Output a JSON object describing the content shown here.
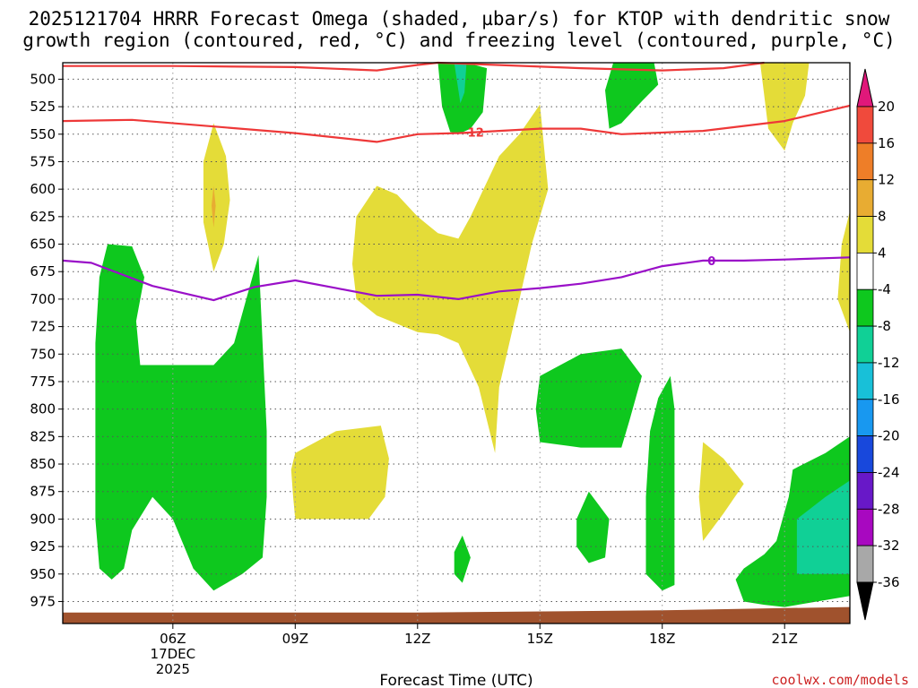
{
  "chart_data": {
    "type": "contour",
    "title_lines": [
      "2025121704 HRRR Forecast Omega (shaded, µbar/s) for KTOP with dendritic snow",
      "growth region (contoured, red, °C) and freezing level (contoured, purple, °C)"
    ],
    "xlabel": "Forecast Time (UTC)",
    "ylabel": "",
    "y_scale": "pressure (hPa, inverted)",
    "x_range_hours_utc": [
      3.3,
      22.6
    ],
    "y_range_hpa": [
      485,
      995
    ],
    "x_ticks": [
      {
        "hour": 6,
        "label": "06Z",
        "sublabels": [
          "17DEC",
          "2025"
        ]
      },
      {
        "hour": 9,
        "label": "09Z",
        "sublabels": []
      },
      {
        "hour": 12,
        "label": "12Z",
        "sublabels": []
      },
      {
        "hour": 15,
        "label": "15Z",
        "sublabels": []
      },
      {
        "hour": 18,
        "label": "18Z",
        "sublabels": []
      },
      {
        "hour": 21,
        "label": "21Z",
        "sublabels": []
      }
    ],
    "y_ticks": [
      500,
      525,
      550,
      575,
      600,
      625,
      650,
      675,
      700,
      725,
      750,
      775,
      800,
      825,
      850,
      875,
      900,
      925,
      950,
      975
    ],
    "grid": "dotted",
    "colorbar": {
      "units": "µbar/s",
      "labels": [
        "20",
        "16",
        "12",
        "8",
        "4",
        "-4",
        "-8",
        "-12",
        "-16",
        "-20",
        "-24",
        "-28",
        "-32",
        "-36"
      ],
      "bins": [
        {
          "range": ">20",
          "color": "#e0187a"
        },
        {
          "range": "16 to 20",
          "color": "#f04a3c"
        },
        {
          "range": "12 to 16",
          "color": "#ee7e28"
        },
        {
          "range": "8 to 12",
          "color": "#e8ac32"
        },
        {
          "range": "4 to 8",
          "color": "#e4dc38"
        },
        {
          "range": "-4 to 4",
          "color": "#ffffff"
        },
        {
          "range": "-8 to -4",
          "color": "#0ec81e"
        },
        {
          "range": "-12 to -8",
          "color": "#10d096"
        },
        {
          "range": "-16 to -12",
          "color": "#18c0d8"
        },
        {
          "range": "-20 to -16",
          "color": "#1898f0"
        },
        {
          "range": "-24 to -20",
          "color": "#1848dc"
        },
        {
          "range": "-28 to -24",
          "color": "#6818c8"
        },
        {
          "range": "-32 to -28",
          "color": "#a808c0"
        },
        {
          "range": "-36 to -32",
          "color": "#a8a8a8"
        },
        {
          "range": "<-36",
          "color": "#000000"
        }
      ]
    },
    "contours": {
      "dgz_minus12_upper": {
        "label": "",
        "color": "#ee3838",
        "points": [
          [
            3.3,
            488
          ],
          [
            6,
            488
          ],
          [
            9,
            489
          ],
          [
            11,
            492
          ],
          [
            12,
            487
          ],
          [
            12.5,
            482
          ],
          [
            16,
            490
          ],
          [
            18,
            492
          ],
          [
            19.5,
            490
          ],
          [
            20.5,
            482
          ]
        ]
      },
      "dgz_minus12_lower": {
        "label": "-12",
        "label_at": [
          13,
          548
        ],
        "color": "#ee3838",
        "points": [
          [
            3.3,
            538
          ],
          [
            5,
            537
          ],
          [
            7,
            543
          ],
          [
            9,
            549
          ],
          [
            11,
            557
          ],
          [
            12,
            550
          ],
          [
            13,
            549
          ],
          [
            15,
            545
          ],
          [
            16,
            545
          ],
          [
            17,
            550
          ],
          [
            19,
            547
          ],
          [
            21,
            538
          ],
          [
            22.6,
            524
          ]
        ]
      },
      "freezing_level_0C": {
        "label": "0",
        "label_at": [
          19,
          665
        ],
        "color": "#9a10c8",
        "points": [
          [
            3.3,
            665
          ],
          [
            4,
            667
          ],
          [
            5.5,
            688
          ],
          [
            7,
            701
          ],
          [
            8,
            689
          ],
          [
            9,
            683
          ],
          [
            10,
            690
          ],
          [
            11,
            697
          ],
          [
            12,
            696
          ],
          [
            13,
            700
          ],
          [
            14,
            693
          ],
          [
            15,
            690
          ],
          [
            16,
            686
          ],
          [
            17,
            680
          ],
          [
            18,
            670
          ],
          [
            19,
            665
          ],
          [
            20,
            665
          ],
          [
            21,
            664
          ],
          [
            22.6,
            662
          ]
        ]
      }
    },
    "shaded_regions": [
      {
        "value_bin": "4 to 8",
        "points": [
          [
            10.4,
            668
          ],
          [
            10.5,
            625
          ],
          [
            11,
            597
          ],
          [
            11.5,
            605
          ],
          [
            12,
            625
          ],
          [
            12.5,
            640
          ],
          [
            13,
            645
          ],
          [
            13.3,
            625
          ],
          [
            14,
            570
          ],
          [
            14.5,
            550
          ],
          [
            15,
            523
          ],
          [
            15.2,
            600
          ],
          [
            14.8,
            650
          ],
          [
            14.5,
            700
          ],
          [
            14,
            780
          ],
          [
            13.9,
            840
          ],
          [
            13.5,
            780
          ],
          [
            13,
            740
          ],
          [
            12.5,
            732
          ],
          [
            12,
            730
          ],
          [
            11,
            715
          ],
          [
            10.5,
            700
          ]
        ]
      },
      {
        "value_bin": "4 to 8",
        "points": [
          [
            6.75,
            575
          ],
          [
            7,
            540
          ],
          [
            7.3,
            570
          ],
          [
            7.4,
            610
          ],
          [
            7.25,
            650
          ],
          [
            7,
            675
          ],
          [
            6.75,
            630
          ]
        ]
      },
      {
        "value_bin": "8 to 12",
        "points": [
          [
            6.95,
            615
          ],
          [
            7,
            597
          ],
          [
            7.05,
            615
          ],
          [
            7,
            635
          ]
        ]
      },
      {
        "value_bin": "4 to 8",
        "points": [
          [
            8.9,
            855
          ],
          [
            9,
            840
          ],
          [
            10,
            820
          ],
          [
            11.1,
            815
          ],
          [
            11.3,
            845
          ],
          [
            11.2,
            880
          ],
          [
            10.8,
            900
          ],
          [
            10,
            900
          ],
          [
            9,
            900
          ],
          [
            8.95,
            880
          ]
        ]
      },
      {
        "value_bin": "4 to 8",
        "points": [
          [
            19,
            830
          ],
          [
            19.5,
            845
          ],
          [
            20,
            868
          ],
          [
            19.5,
            895
          ],
          [
            19,
            920
          ],
          [
            18.9,
            880
          ]
        ]
      },
      {
        "value_bin": "4 to 8",
        "points": [
          [
            20.4,
            480
          ],
          [
            21.6,
            480
          ],
          [
            21.5,
            515
          ],
          [
            21.2,
            540
          ],
          [
            21,
            565
          ],
          [
            20.6,
            545
          ],
          [
            20.5,
            515
          ]
        ]
      },
      {
        "value_bin": "4 to 8",
        "points": [
          [
            22.4,
            650
          ],
          [
            22.6,
            620
          ],
          [
            22.6,
            730
          ],
          [
            22.3,
            700
          ]
        ]
      },
      {
        "value_bin": "-8 to -4",
        "points": [
          [
            4.1,
            740
          ],
          [
            4.2,
            680
          ],
          [
            4.4,
            650
          ],
          [
            5,
            652
          ],
          [
            5.3,
            680
          ],
          [
            5.1,
            720
          ],
          [
            5.2,
            760
          ],
          [
            6,
            760
          ],
          [
            7,
            760
          ],
          [
            7.5,
            740
          ],
          [
            7.8,
            700
          ],
          [
            8.1,
            660
          ],
          [
            8.2,
            740
          ],
          [
            8.3,
            820
          ],
          [
            8.3,
            880
          ],
          [
            8.2,
            935
          ],
          [
            7.7,
            950
          ],
          [
            7,
            965
          ],
          [
            6.5,
            945
          ],
          [
            6,
            900
          ],
          [
            5.5,
            880
          ],
          [
            5,
            910
          ],
          [
            4.8,
            945
          ],
          [
            4.5,
            955
          ],
          [
            4.2,
            945
          ],
          [
            4.1,
            900
          ]
        ]
      },
      {
        "value_bin": "-8 to -4",
        "points": [
          [
            12.5,
            480
          ],
          [
            13.2,
            482
          ],
          [
            13.7,
            490
          ],
          [
            13.6,
            530
          ],
          [
            13.3,
            545
          ],
          [
            13,
            550
          ],
          [
            12.8,
            548
          ],
          [
            12.6,
            525
          ]
        ]
      },
      {
        "value_bin": "-12 to -8",
        "points": [
          [
            12.9,
            483
          ],
          [
            13.2,
            483
          ],
          [
            13.15,
            512
          ],
          [
            13.05,
            522
          ]
        ]
      },
      {
        "value_bin": "-8 to -4",
        "points": [
          [
            16.8,
            480
          ],
          [
            17.8,
            480
          ],
          [
            17.9,
            505
          ],
          [
            17.5,
            520
          ],
          [
            17,
            540
          ],
          [
            16.7,
            545
          ],
          [
            16.6,
            510
          ]
        ]
      },
      {
        "value_bin": "-8 to -4",
        "points": [
          [
            15,
            770
          ],
          [
            16,
            750
          ],
          [
            17,
            745
          ],
          [
            17.5,
            770
          ],
          [
            17.2,
            810
          ],
          [
            17,
            835
          ],
          [
            16,
            835
          ],
          [
            15,
            830
          ],
          [
            14.9,
            800
          ]
        ]
      },
      {
        "value_bin": "-8 to -4",
        "points": [
          [
            15.9,
            900
          ],
          [
            16.2,
            875
          ],
          [
            16.7,
            900
          ],
          [
            16.6,
            935
          ],
          [
            16.2,
            940
          ],
          [
            15.9,
            925
          ]
        ]
      },
      {
        "value_bin": "-8 to -4",
        "points": [
          [
            12.9,
            930
          ],
          [
            13.1,
            915
          ],
          [
            13.3,
            935
          ],
          [
            13.1,
            958
          ],
          [
            12.9,
            950
          ]
        ]
      },
      {
        "value_bin": "-8 to -4",
        "points": [
          [
            17.7,
            820
          ],
          [
            17.9,
            790
          ],
          [
            18.2,
            770
          ],
          [
            18.3,
            800
          ],
          [
            18.3,
            870
          ],
          [
            18.3,
            960
          ],
          [
            18,
            965
          ],
          [
            17.6,
            950
          ],
          [
            17.6,
            880
          ]
        ]
      },
      {
        "value_bin": "-8 to -4",
        "points": [
          [
            20,
            945
          ],
          [
            20.5,
            932
          ],
          [
            20.8,
            920
          ],
          [
            21.1,
            880
          ],
          [
            21.2,
            855
          ],
          [
            22,
            840
          ],
          [
            22.6,
            825
          ],
          [
            22.6,
            970
          ],
          [
            21,
            980
          ],
          [
            20.5,
            978
          ],
          [
            20,
            975
          ],
          [
            19.8,
            955
          ]
        ]
      },
      {
        "value_bin": "-12 to -8",
        "points": [
          [
            21.3,
            900
          ],
          [
            22,
            880
          ],
          [
            22.6,
            865
          ],
          [
            22.6,
            950
          ],
          [
            21.3,
            950
          ]
        ]
      }
    ],
    "terrain_band": {
      "color": "#a0522d",
      "points": [
        [
          3.3,
          985
        ],
        [
          12,
          985
        ],
        [
          18,
          983
        ],
        [
          21,
          981
        ],
        [
          22.6,
          980
        ]
      ]
    },
    "credit": "coolwx.com/models"
  }
}
